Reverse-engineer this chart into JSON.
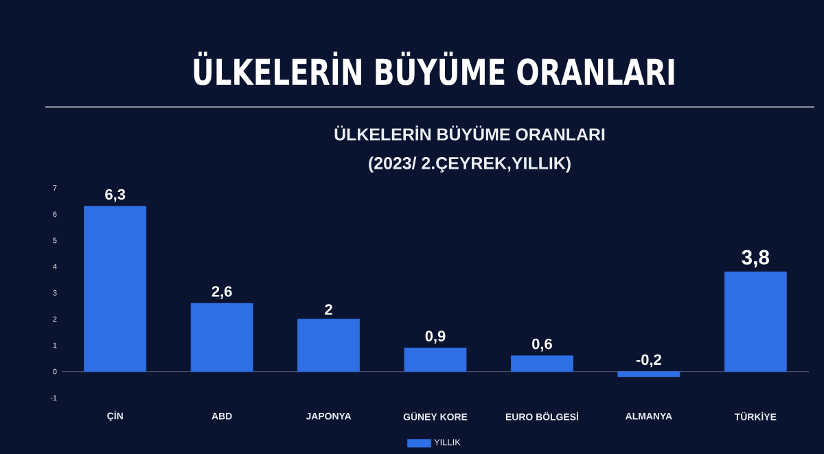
{
  "chart_data": {
    "type": "bar",
    "title": "ÜLKELERİN BÜYÜME ORANLARI",
    "subtitle": "ÜLKELERİN BÜYÜME ORANLARI",
    "annotations": [
      "(2023/ 2.ÇEYREK,YILLIK)"
    ],
    "categories": [
      "ÇİN",
      "ABD",
      "JAPONYA",
      "GÜNEY KORE",
      "EURO BÖLGESİ",
      "ALMANYA",
      "TÜRKİYE"
    ],
    "series": [
      {
        "name": "YILLIK",
        "color": "#2f6fe4",
        "values": [
          6.3,
          2.6,
          2,
          0.9,
          0.6,
          -0.2,
          3.8
        ],
        "value_labels": [
          "6,3",
          "2,6",
          "2",
          "0,9",
          "0,6",
          "-0,2",
          "3,8"
        ]
      }
    ],
    "ylim": [
      -1,
      7
    ],
    "yticks": [
      -1,
      0,
      1,
      2,
      3,
      4,
      5,
      6,
      7
    ],
    "legend": "bottom"
  }
}
